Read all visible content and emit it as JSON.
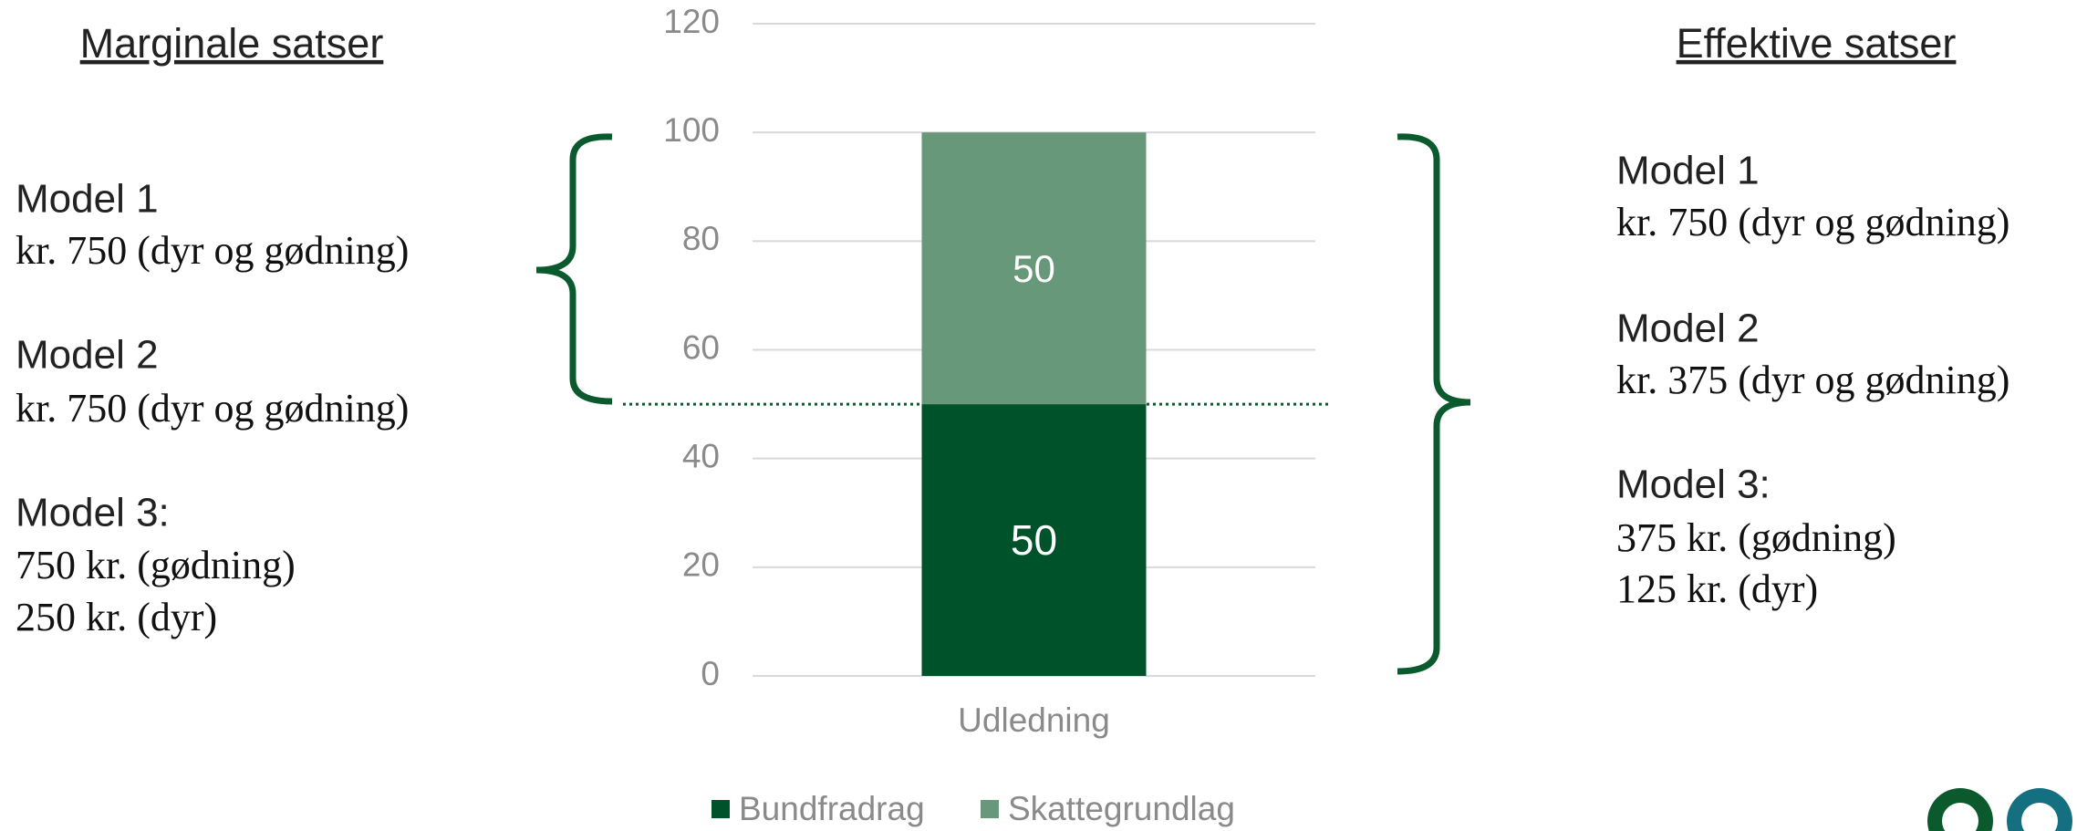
{
  "chart_data": {
    "type": "stacked_bar",
    "categories": [
      "Udledning"
    ],
    "series": [
      {
        "name": "Bundfradrag",
        "color": "#00522a",
        "values": [
          50
        ]
      },
      {
        "name": "Skattegrundlag",
        "color": "#67987a",
        "values": [
          50
        ]
      }
    ],
    "ylim": [
      0,
      120
    ],
    "yticks": [
      0,
      20,
      40,
      60,
      80,
      100,
      120
    ],
    "grid": true,
    "legend": "bottom"
  },
  "left_panel": {
    "title": "Marginale satser",
    "models": [
      {
        "name": "Model 1",
        "lines": [
          "kr. 750 (dyr og gødning)"
        ]
      },
      {
        "name": "Model 2",
        "lines": [
          "kr. 750 (dyr og gødning)"
        ]
      },
      {
        "name": "Model 3:",
        "lines": [
          "750 kr. (gødning)",
          "250 kr. (dyr)"
        ]
      }
    ]
  },
  "right_panel": {
    "title": "Effektive satser",
    "models": [
      {
        "name": "Model 1",
        "lines": [
          "kr. 750 (dyr og gødning)"
        ]
      },
      {
        "name": "Model 2",
        "lines": [
          "kr. 375 (dyr og gødning)"
        ]
      },
      {
        "name": "Model 3:",
        "lines": [
          "375 kr. (gødning)",
          "125 kr. (dyr)"
        ]
      }
    ]
  }
}
